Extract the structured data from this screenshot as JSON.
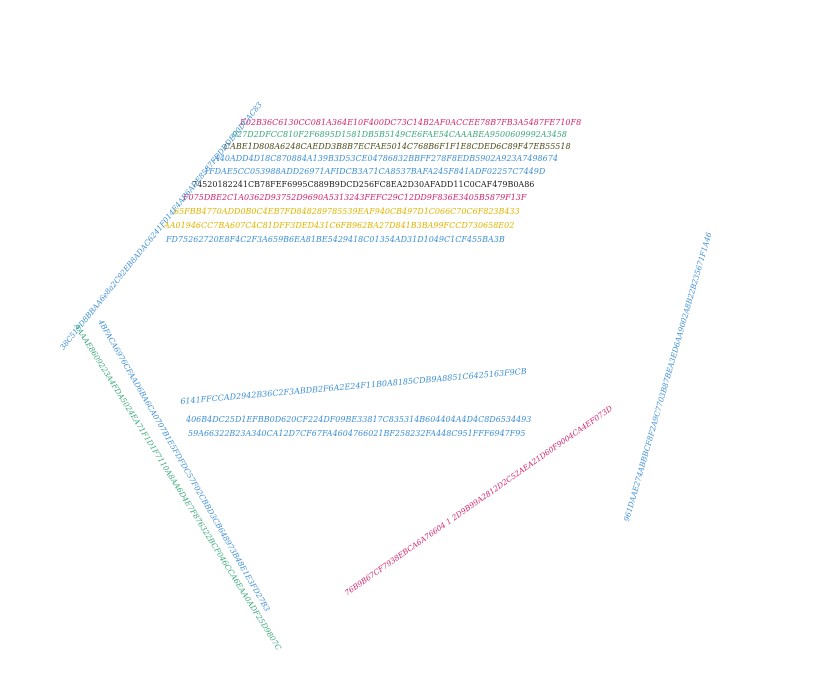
{
  "colors": {
    "blue": "#3d8fd6",
    "pink": "#d6246e",
    "green": "#3aa878",
    "olive": "#4a4a18",
    "gold": "#e0b400",
    "black": "#1a1a1a"
  },
  "block1": [
    "E02B36C6130CC081A364E10F400DC73C14B2AF0ACCEE78B7FB3A5487FE710F8",
    "027D2DFCC810F2F6895D1581DB5B5149CE6FAE54CAAABEA9500609992A3458",
    "CABE1D808A6248CAEDD3B8B7ECFAE5014C768B6F1F1E8CDED6C89F47EB55518",
    "A40ADD4D18C870884A139B3D53CE04786832BBFF278F8EDB5902A923A7498674",
    "1FDAE5CC053988ADD26971AFIDCB3A71CA8537BAFA245F841ADF02257C7449D",
    "74520182241CB78FEF6995C889B9DCD256FC8EA2D30AFADD11C0CAF479B0A86",
    "F075DBE2C1A0362D93752D9690A5313243FEFC29C12DD9F836E3405B5879F13F",
    "65FBB4770ADD0B0C4EB7FD848289785539EAF940CB497D1C066C70C6F823B433",
    "AA01946CC7BA607C4C81DFF3DED431C6FB962BA27D841B3BA99FCCD730658E02",
    "FD75262720E8F4C2F3A659B6EA81BE5429418C01354AD31D1049C1CF455BA3B"
  ],
  "block2": [
    "6141FFCCAD2942B36C2F3ABDB2F6A2E24F11B0A8185CDB9A8851C6425163F9CB",
    "406B4DC25D1EFBB0D620CF224DF09BE33817C835314B604404A4D4C8D6534493",
    "59A66322B23A340CA12D7CF67FA4604766021BF258232FA448C951FFF6947F95"
  ],
  "diag": {
    "blue_upper": "38C519D8BBAA6e8a2C92EB8ADAC6241F014F4AE6ADE8587FDDDDE00DCAC83",
    "blue_lower": "4BFACA6976CFAAD6BA6CA0707B1E5FDFDC57F02CBBD3CB648973B48E1E3FD27B3",
    "green": "AAAAE8609223A4FDA5024EA71F1D1F7110A8AA6D4E7F876322BCF046CCA6EAA0ADF25D9807C",
    "pink": "76B9B67CF7938EBCA6A76604 1 2D9B99A2812D2C52AEA21D60F9004CA4EF073D",
    "blue_right": "961DAAE274ABBBCF8F2A9C7703B87BEA3ED6AA9002A8B22B235671F1A46"
  }
}
